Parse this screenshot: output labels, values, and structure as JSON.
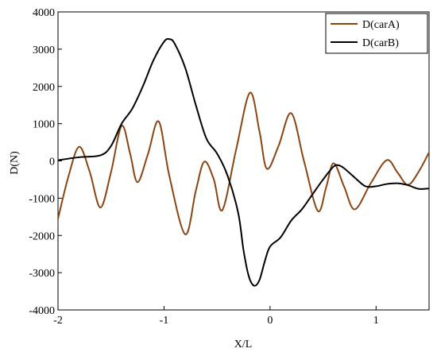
{
  "chart_data": {
    "type": "line",
    "x_label": "X/L",
    "y_label": "D(N)",
    "xlim": [
      -2,
      1.5
    ],
    "ylim": [
      -4000,
      4000
    ],
    "xticks": [
      -2,
      -1,
      0,
      1
    ],
    "yticks": [
      -4000,
      -3000,
      -2000,
      -1000,
      0,
      1000,
      2000,
      3000,
      4000
    ],
    "legend": "upper right",
    "series": [
      {
        "name": "D(carA)",
        "color": "#8B4513",
        "x": [
          -2,
          -1.9,
          -1.8,
          -1.7,
          -1.6,
          -1.5,
          -1.4,
          -1.32,
          -1.25,
          -1.15,
          -1.05,
          -0.95,
          -0.8,
          -0.7,
          -0.62,
          -0.53,
          -0.45,
          -0.32,
          -0.19,
          -0.1,
          -0.03,
          0.08,
          0.2,
          0.32,
          0.45,
          0.53,
          0.6,
          0.7,
          0.8,
          0.95,
          1.1,
          1.2,
          1.3,
          1.4,
          1.5
        ],
        "values": [
          -1550,
          -400,
          380,
          -300,
          -1250,
          -300,
          940,
          200,
          -570,
          200,
          1060,
          -400,
          -1970,
          -800,
          -20,
          -500,
          -1320,
          300,
          1830,
          800,
          -210,
          400,
          1280,
          0,
          -1340,
          -700,
          -60,
          -700,
          -1300,
          -600,
          20,
          -300,
          -640,
          -300,
          230
        ]
      },
      {
        "name": "D(carB)",
        "color": "#000000",
        "x": [
          -2,
          -1.8,
          -1.6,
          -1.5,
          -1.4,
          -1.3,
          -1.2,
          -1.1,
          -1,
          -0.95,
          -0.9,
          -0.8,
          -0.7,
          -0.6,
          -0.5,
          -0.4,
          -0.3,
          -0.25,
          -0.2,
          -0.15,
          -0.1,
          -0.05,
          0,
          0.1,
          0.2,
          0.3,
          0.4,
          0.5,
          0.6,
          0.65,
          0.7,
          0.8,
          0.9,
          1,
          1.1,
          1.2,
          1.3,
          1.4,
          1.5
        ],
        "values": [
          20,
          100,
          150,
          400,
          1000,
          1400,
          2000,
          2700,
          3200,
          3270,
          3150,
          2500,
          1500,
          600,
          200,
          -400,
          -1400,
          -2400,
          -3100,
          -3350,
          -3200,
          -2700,
          -2300,
          -2050,
          -1600,
          -1300,
          -900,
          -500,
          -150,
          -120,
          -200,
          -450,
          -680,
          -680,
          -620,
          -600,
          -650,
          -750,
          -740
        ]
      }
    ]
  }
}
